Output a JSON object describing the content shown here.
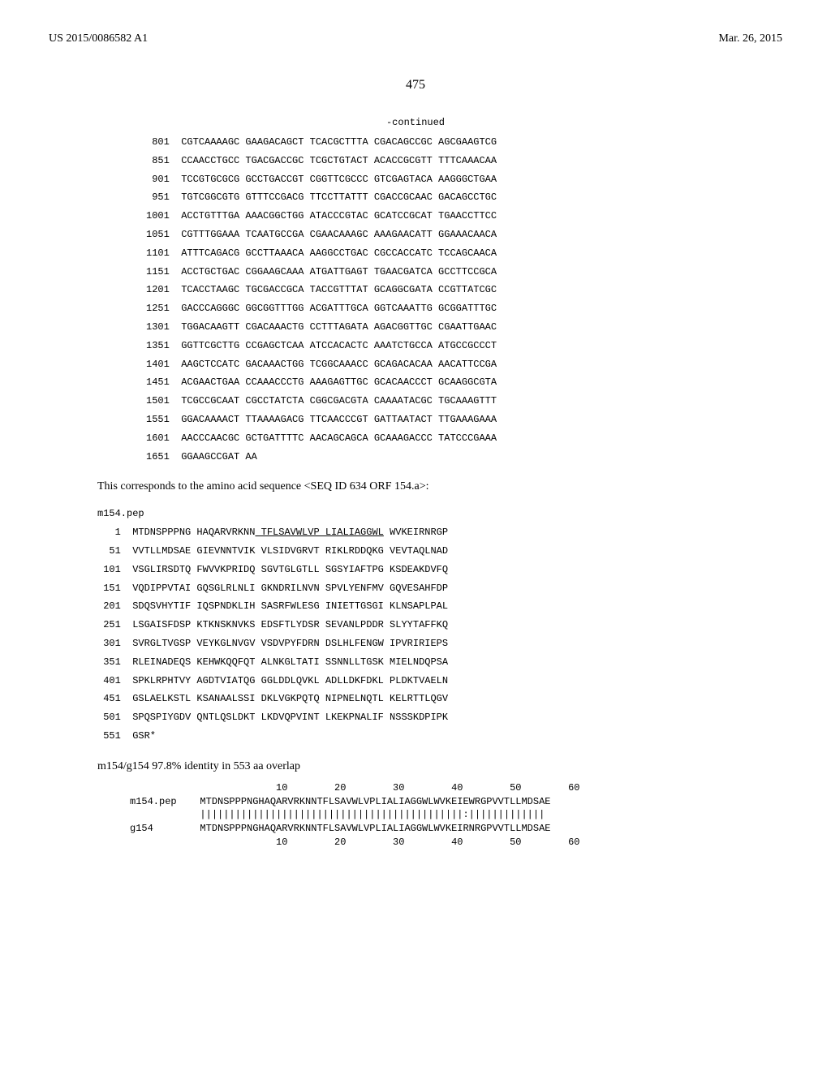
{
  "header": {
    "left": "US 2015/0086582 A1",
    "right": "Mar. 26, 2015"
  },
  "page_number": "475",
  "continued_label": "-continued",
  "dna_sequence": {
    "rows": [
      {
        "pos": "801",
        "g": [
          "CGTCAAAAGC",
          "GAAGACAGCT",
          "TCACGCTTTA",
          "CGACAGCCGC",
          "AGCGAAGTCG"
        ]
      },
      {
        "pos": "851",
        "g": [
          "CCAACCTGCC",
          "TGACGACCGC",
          "TCGCTGTACT",
          "ACACCGCGTT",
          "TTTCAAACAA"
        ]
      },
      {
        "pos": "901",
        "g": [
          "TCCGTGCGCG",
          "GCCTGACCGT",
          "CGGTTCGCCC",
          "GTCGAGTACA",
          "AAGGGCTGAA"
        ]
      },
      {
        "pos": "951",
        "g": [
          "TGTCGGCGTG",
          "GTTTCCGACG",
          "TTCCTTATTT",
          "CGACCGCAAC",
          "GACAGCCTGC"
        ]
      },
      {
        "pos": "1001",
        "g": [
          "ACCTGTTTGA",
          "AAACGGCTGG",
          "ATACCCGTAC",
          "GCATCCGCAT",
          "TGAACCTTCC"
        ]
      },
      {
        "pos": "1051",
        "g": [
          "CGTTTGGAAA",
          "TCAATGCCGA",
          "CGAACAAAGC",
          "AAAGAACATT",
          "GGAAACAACA"
        ]
      },
      {
        "pos": "1101",
        "g": [
          "ATTTCAGACG",
          "GCCTTAAACA",
          "AAGGCCTGAC",
          "CGCCACCATC",
          "TCCAGCAACA"
        ]
      },
      {
        "pos": "1151",
        "g": [
          "ACCTGCTGAC",
          "CGGAAGCAAA",
          "ATGATTGAGT",
          "TGAACGATCA",
          "GCCTTCCGCA"
        ]
      },
      {
        "pos": "1201",
        "g": [
          "TCACCTAAGC",
          "TGCGACCGCA",
          "TACCGTTTAT",
          "GCAGGCGATA",
          "CCGTTATCGC"
        ]
      },
      {
        "pos": "1251",
        "g": [
          "GACCCAGGGC",
          "GGCGGTTTGG",
          "ACGATTTGCA",
          "GGTCAAATTG",
          "GCGGATTTGC"
        ]
      },
      {
        "pos": "1301",
        "g": [
          "TGGACAAGTT",
          "CGACAAACTG",
          "CCTTTAGATA",
          "AGACGGTTGC",
          "CGAATTGAAC"
        ]
      },
      {
        "pos": "1351",
        "g": [
          "GGTTCGCTTG",
          "CCGAGCTCAA",
          "ATCCACACTC",
          "AAATCTGCCA",
          "ATGCCGCCCT"
        ]
      },
      {
        "pos": "1401",
        "g": [
          "AAGCTCCATC",
          "GACAAACTGG",
          "TCGGCAAACC",
          "GCAGACACAA",
          "AACATTCCGA"
        ]
      },
      {
        "pos": "1451",
        "g": [
          "ACGAACTGAA",
          "CCAAACCCTG",
          "AAAGAGTTGC",
          "GCACAACCCT",
          "GCAAGGCGTA"
        ]
      },
      {
        "pos": "1501",
        "g": [
          "TCGCCGCAAT",
          "CGCCTATCTA",
          "CGGCGACGTA",
          "CAAAATACGC",
          "TGCAAAGTTT"
        ]
      },
      {
        "pos": "1551",
        "g": [
          "GGACAAAACT",
          "TTAAAAGACG",
          "TTCAACCCGT",
          "GATTAATACT",
          "TTGAAAGAAA"
        ]
      },
      {
        "pos": "1601",
        "g": [
          "AACCCAACGC",
          "GCTGATTTTC",
          "AACAGCAGCA",
          "GCAAAGACCC",
          "TATCCCGAAA"
        ]
      },
      {
        "pos": "1651",
        "g": [
          "GGAAGCCGAT",
          "AA",
          "",
          "",
          ""
        ]
      }
    ]
  },
  "body_text": "This corresponds to the amino acid sequence <SEQ ID 634 ORF 154.a>:",
  "pep_header": "m154.pep",
  "pep_sequence": {
    "rows": [
      {
        "pos": "1",
        "g": [
          "MTDNSPPPNG",
          "HAQARVRKNN",
          "TFLSAVWLVP",
          "LIALIAGGWL",
          "WVKEIRNRGP"
        ]
      },
      {
        "pos": "51",
        "g": [
          "VVTLLMDSAE",
          "GIEVNNTVIK",
          "VLSIDVGRVT",
          "RIKLRDDQKG",
          "VEVTAQLNAD"
        ]
      },
      {
        "pos": "101",
        "g": [
          "VSGLIRSDTQ",
          "FWVVKPRIDQ",
          "SGVTGLGTLL",
          "SGSYIAFTPG",
          "KSDEAKDVFQ"
        ]
      },
      {
        "pos": "151",
        "g": [
          "VQDIPPVTAI",
          "GQSGLRLNLI",
          "GKNDRILNVN",
          "SPVLYENFMV",
          "GQVESAHFDP"
        ]
      },
      {
        "pos": "201",
        "g": [
          "SDQSVHYTIF",
          "IQSPNDKLIH",
          "SASRFWLESG",
          "INIETTGSGI",
          "KLNSAPLPAL"
        ]
      },
      {
        "pos": "251",
        "g": [
          "LSGAISFDSP",
          "KTKNSKNVKS",
          "EDSFTLYDSR",
          "SEVANLPDDR",
          "SLYYTAFFKQ"
        ]
      },
      {
        "pos": "301",
        "g": [
          "SVRGLTVGSP",
          "VEYKGLNVGV",
          "VSDVPYFDRN",
          "DSLHLFENGW",
          "IPVRIRIEPS"
        ]
      },
      {
        "pos": "351",
        "g": [
          "RLEINADEQS",
          "KEHWKQQFQT",
          "ALNKGLTATI",
          "SSNNLLTGSK",
          "MIELNDQPSA"
        ]
      },
      {
        "pos": "401",
        "g": [
          "SPKLRPHTVY",
          "AGDTVIATQG",
          "GGLDDLQVKL",
          "ADLLDKFDKL",
          "PLDKTVAELN"
        ]
      },
      {
        "pos": "451",
        "g": [
          "GSLAELKSTL",
          "KSANAALSSI",
          "DKLVGKPQTQ",
          "NIPNELNQTL",
          "KELRTTLQGV"
        ]
      },
      {
        "pos": "501",
        "g": [
          "SPQSPIYGDV",
          "QNTLQSLDKT",
          "LKDVQPVINT",
          "LKEKPNALIF",
          "NSSSKDPIPK"
        ]
      },
      {
        "pos": "551",
        "g": [
          "GSR*",
          "",
          "",
          "",
          ""
        ]
      }
    ],
    "underline_row0_start": 21,
    "underline_row0_end": 43
  },
  "identity_line": "m154/g154 97.8% identity in 553 aa overlap",
  "alignment": {
    "ruler_top": "               10        20        30        40        50        60",
    "m154_label": "m154.pep",
    "m154_seq": "MTDNSPPPNGHAQARVRKNNTFLSAVWLVPLIALIAGGWLWVKEIEWRGPVVTLLMDSAE",
    "match": "|||||||||||||||||||||||||||||||||||||||||||||:|||||||||||||",
    "g154_label": "g154",
    "g154_seq": "MTDNSPPPNGHAQARVRKNNTFLSAVWLVPLIALIAGGWLWVKEIRNRGPVVTLLMDSAE",
    "ruler_bot": "               10        20        30        40        50        60"
  }
}
